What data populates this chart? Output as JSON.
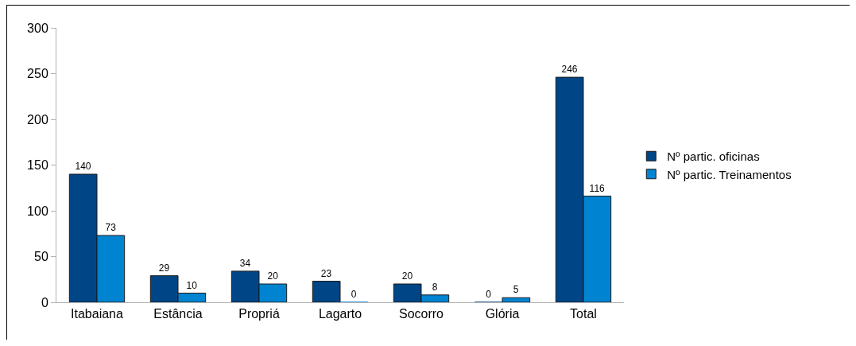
{
  "chart_data": {
    "type": "bar",
    "categories": [
      "Itabaiana",
      "Estância",
      "Propriá",
      "Lagarto",
      "Socorro",
      "Glória",
      "Total"
    ],
    "series": [
      {
        "name": "Nº partic. oficinas",
        "color": "#004586",
        "values": [
          140,
          29,
          34,
          23,
          20,
          0,
          246
        ]
      },
      {
        "name": "Nº partic. Treinamentos",
        "color": "#0084d1",
        "values": [
          73,
          10,
          20,
          0,
          8,
          5,
          116
        ]
      }
    ],
    "ylim": [
      0,
      300
    ],
    "yticks": [
      0,
      50,
      100,
      150,
      200,
      250,
      300
    ],
    "grid": false,
    "legend": "right",
    "data_labels": true
  }
}
